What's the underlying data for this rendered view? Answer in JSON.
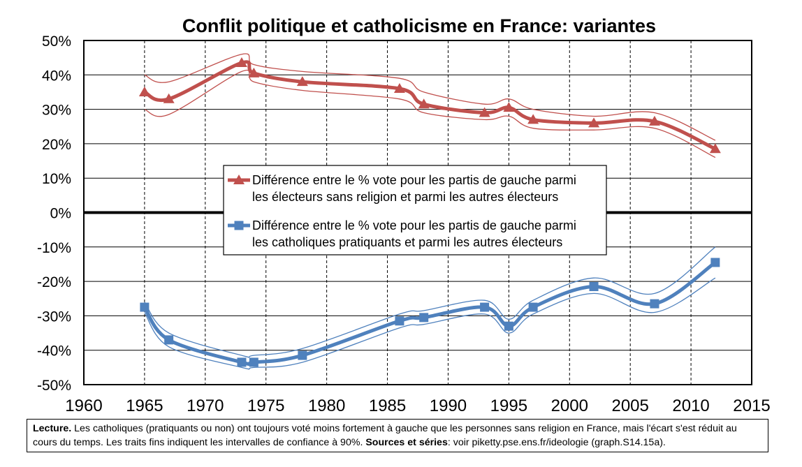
{
  "chart_data": {
    "type": "line",
    "title": "Conflit politique et catholicisme en France: variantes",
    "xlabel": "",
    "ylabel": "",
    "xlim": [
      1960,
      2015
    ],
    "ylim": [
      -50,
      50
    ],
    "x_ticks": [
      1960,
      1965,
      1970,
      1975,
      1980,
      1985,
      1990,
      1995,
      2000,
      2005,
      2010,
      2015
    ],
    "y_ticks": [
      "-50%",
      "-40%",
      "-30%",
      "-20%",
      "-10%",
      "0%",
      "10%",
      "20%",
      "30%",
      "40%",
      "50%"
    ],
    "grid": true,
    "legend_placement": "center",
    "series": [
      {
        "name": "Différence entre le % vote pour les partis de gauche parmi les électeurs sans religion et parmi les autres électeurs",
        "legend_line1": "Différence entre le % vote pour les partis de gauche parmi",
        "legend_line2": "les électeurs sans religion et parmi les autres électeurs",
        "color": "#c0504d",
        "marker": "triangle",
        "x": [
          1965,
          1967,
          1973,
          1974,
          1978,
          1986,
          1988,
          1993,
          1995,
          1997,
          2002,
          2007,
          2012
        ],
        "values": [
          35,
          33,
          43.5,
          40.5,
          38,
          36,
          31.5,
          29,
          30.5,
          27,
          26,
          26.5,
          18.5
        ],
        "ci_upper": [
          40,
          38,
          46,
          43,
          41,
          39,
          35,
          31.5,
          33,
          30,
          28,
          29,
          21
        ],
        "ci_lower": [
          30,
          28.5,
          41,
          38,
          35.5,
          33,
          29,
          27,
          28,
          24.5,
          24,
          24.5,
          16
        ]
      },
      {
        "name": "Différence entre le % vote pour les partis de gauche parmi les catholiques pratiquants et parmi les autres électeurs",
        "legend_line1": "Différence entre le % vote pour les partis de gauche parmi",
        "legend_line2": "les catholiques pratiquants et parmi les autres électeurs",
        "color": "#4f81bd",
        "marker": "square",
        "x": [
          1965,
          1967,
          1973,
          1974,
          1978,
          1986,
          1988,
          1993,
          1995,
          1997,
          2002,
          2007,
          2012
        ],
        "values": [
          -27.5,
          -37,
          -43.5,
          -43.5,
          -41.5,
          -31.5,
          -30.5,
          -27.5,
          -33,
          -27.5,
          -21.5,
          -26.5,
          -14.5
        ],
        "ci_upper": [
          -26,
          -35,
          -41.5,
          -41.5,
          -39.5,
          -29.5,
          -28.5,
          -25.5,
          -31,
          -25.5,
          -19,
          -23.5,
          -10
        ],
        "ci_lower": [
          -29,
          -39,
          -45,
          -45,
          -43.5,
          -33.5,
          -32.5,
          -29.5,
          -35,
          -29.5,
          -23.5,
          -29,
          -19
        ]
      }
    ]
  },
  "note": {
    "lecture_label": "Lecture.",
    "lecture_text": " Les catholiques (pratiquants ou non) ont toujours voté moins fortement à gauche que les personnes sans religion en France, mais l'écart s'est réduit au cours du temps. Les traits fins indiquent les intervalles de confiance à 90%. ",
    "sources_label": "Sources et séries",
    "sources_text": ": voir piketty.pse.ens.fr/ideologie (graph.S14.15a)."
  }
}
